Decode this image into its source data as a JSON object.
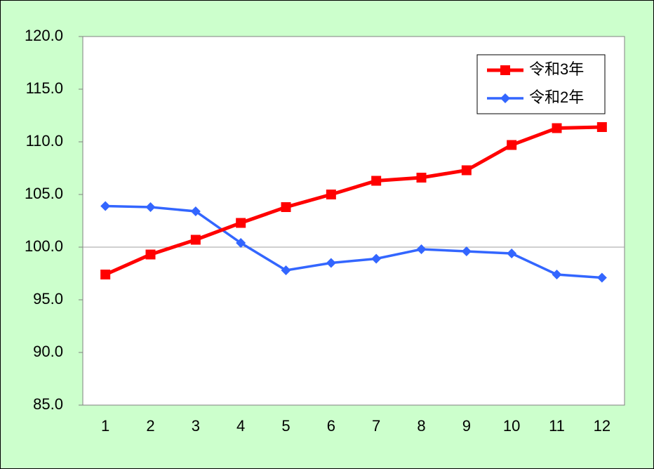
{
  "chart_data": {
    "type": "line",
    "categories": [
      "1",
      "2",
      "3",
      "4",
      "5",
      "6",
      "7",
      "8",
      "9",
      "10",
      "11",
      "12"
    ],
    "series": [
      {
        "name": "令和3年",
        "color": "#ff0000",
        "marker": "square",
        "values": [
          97.4,
          99.3,
          100.7,
          102.3,
          103.8,
          105.0,
          106.3,
          106.6,
          107.3,
          109.7,
          111.3,
          111.4
        ]
      },
      {
        "name": "令和2年",
        "color": "#3366ff",
        "marker": "diamond",
        "values": [
          103.9,
          103.8,
          103.4,
          100.4,
          97.8,
          98.5,
          98.9,
          99.8,
          99.6,
          99.4,
          97.4,
          97.1
        ]
      }
    ],
    "ylim": [
      85,
      120
    ],
    "yticks": [
      {
        "value": 85,
        "label": "85.0"
      },
      {
        "value": 90,
        "label": "90.0"
      },
      {
        "value": 95,
        "label": "95.0"
      },
      {
        "value": 100,
        "label": "100.0"
      },
      {
        "value": 105,
        "label": "105.0"
      },
      {
        "value": 110,
        "label": "110.0"
      },
      {
        "value": 115,
        "label": "115.0"
      },
      {
        "value": 120,
        "label": "120.0"
      }
    ],
    "reference_line": 100,
    "legend": "top-right"
  }
}
